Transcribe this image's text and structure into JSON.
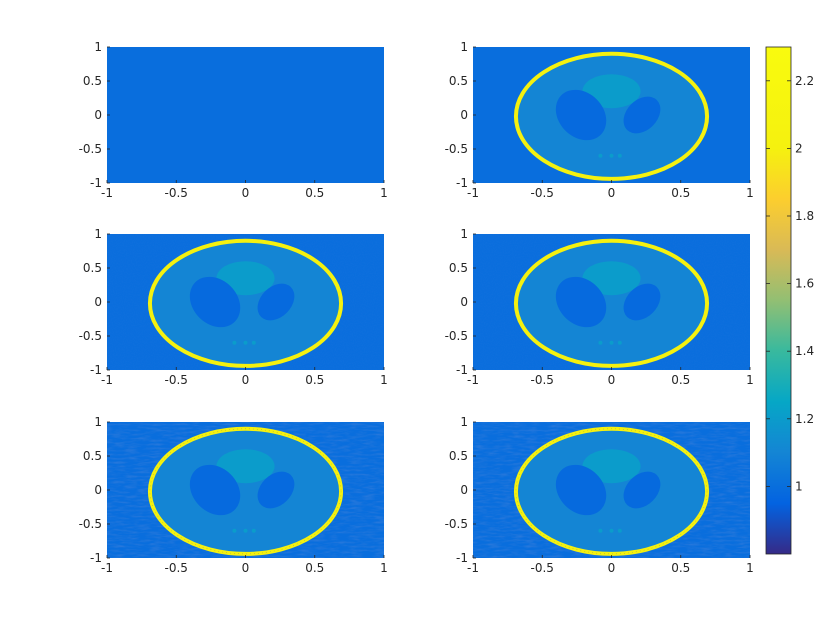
{
  "chart_data": {
    "type": "heatmap",
    "layout": "3 rows x 2 columns of image panels with shared colorbar",
    "panels": [
      {
        "content": "uniform background"
      },
      {
        "content": "phantom with ellipses"
      },
      {
        "content": "phantom with ellipses and faint noise"
      },
      {
        "content": "phantom with ellipses and faint noise"
      },
      {
        "content": "phantom with ellipses and streak artifacts"
      },
      {
        "content": "phantom with ellipses and streak artifacts"
      }
    ],
    "x_ticks": [
      "-1",
      "-0.5",
      "0",
      "0.5",
      "1"
    ],
    "y_ticks": [
      "1",
      "0.5",
      "0",
      "-0.5",
      "-1"
    ],
    "xlim": [
      -1,
      1
    ],
    "ylim": [
      -1,
      1
    ],
    "phantom_values": {
      "background": 1.0,
      "outer_ring": 2.0,
      "body": 1.1,
      "top_circle": 1.2,
      "dark_ellipses": 0.98
    },
    "colorbar": {
      "colormap": "parula",
      "range": [
        0.8,
        2.3
      ],
      "ticks": [
        "2.2",
        "2",
        "1.8",
        "1.6",
        "1.4",
        "1.2",
        "1"
      ],
      "tick_values": [
        2.2,
        2.0,
        1.8,
        1.6,
        1.4,
        1.2,
        1.0
      ]
    }
  }
}
